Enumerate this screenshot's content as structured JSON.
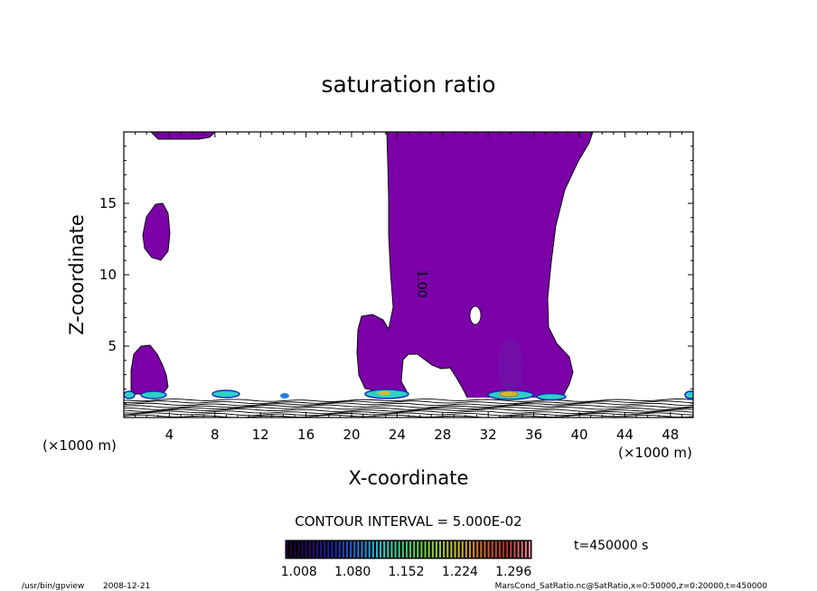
{
  "chart_data": {
    "type": "contour",
    "title": "saturation ratio",
    "xlabel": "X-coordinate",
    "ylabel": "Z-coordinate",
    "x_unit": "(×1000 m)",
    "z_unit": "(×1000 m)",
    "xlim": [
      0,
      50
    ],
    "ylim": [
      0,
      20
    ],
    "x_ticks": [
      4,
      8,
      12,
      16,
      20,
      24,
      28,
      32,
      36,
      40,
      44,
      48
    ],
    "y_ticks": [
      5,
      10,
      15
    ],
    "contour_label": "1.00",
    "contour_interval_text": "CONTOUR INTERVAL = 5.000E-02",
    "colorbar": {
      "tick_labels": [
        "1.008",
        "1.080",
        "1.152",
        "1.224",
        "1.296"
      ],
      "min": 0.99,
      "max": 1.32,
      "colors": [
        "#1a0033",
        "#2a0a6a",
        "#1a2bb0",
        "#1f7fe0",
        "#2ed0c8",
        "#3ad060",
        "#8ad030",
        "#c8c030",
        "#d07028",
        "#b02818",
        "#ff8aa0"
      ]
    },
    "fill_color": "#7b00a8",
    "time_label": "t=450000 s",
    "footer_left_path": "/usr/bin/gpview",
    "footer_left_date": "2008-12-21",
    "footer_right": "MarsCond_SatRatio.nc@SatRatio,x=0:50000,z=0:20000,t=450000"
  }
}
